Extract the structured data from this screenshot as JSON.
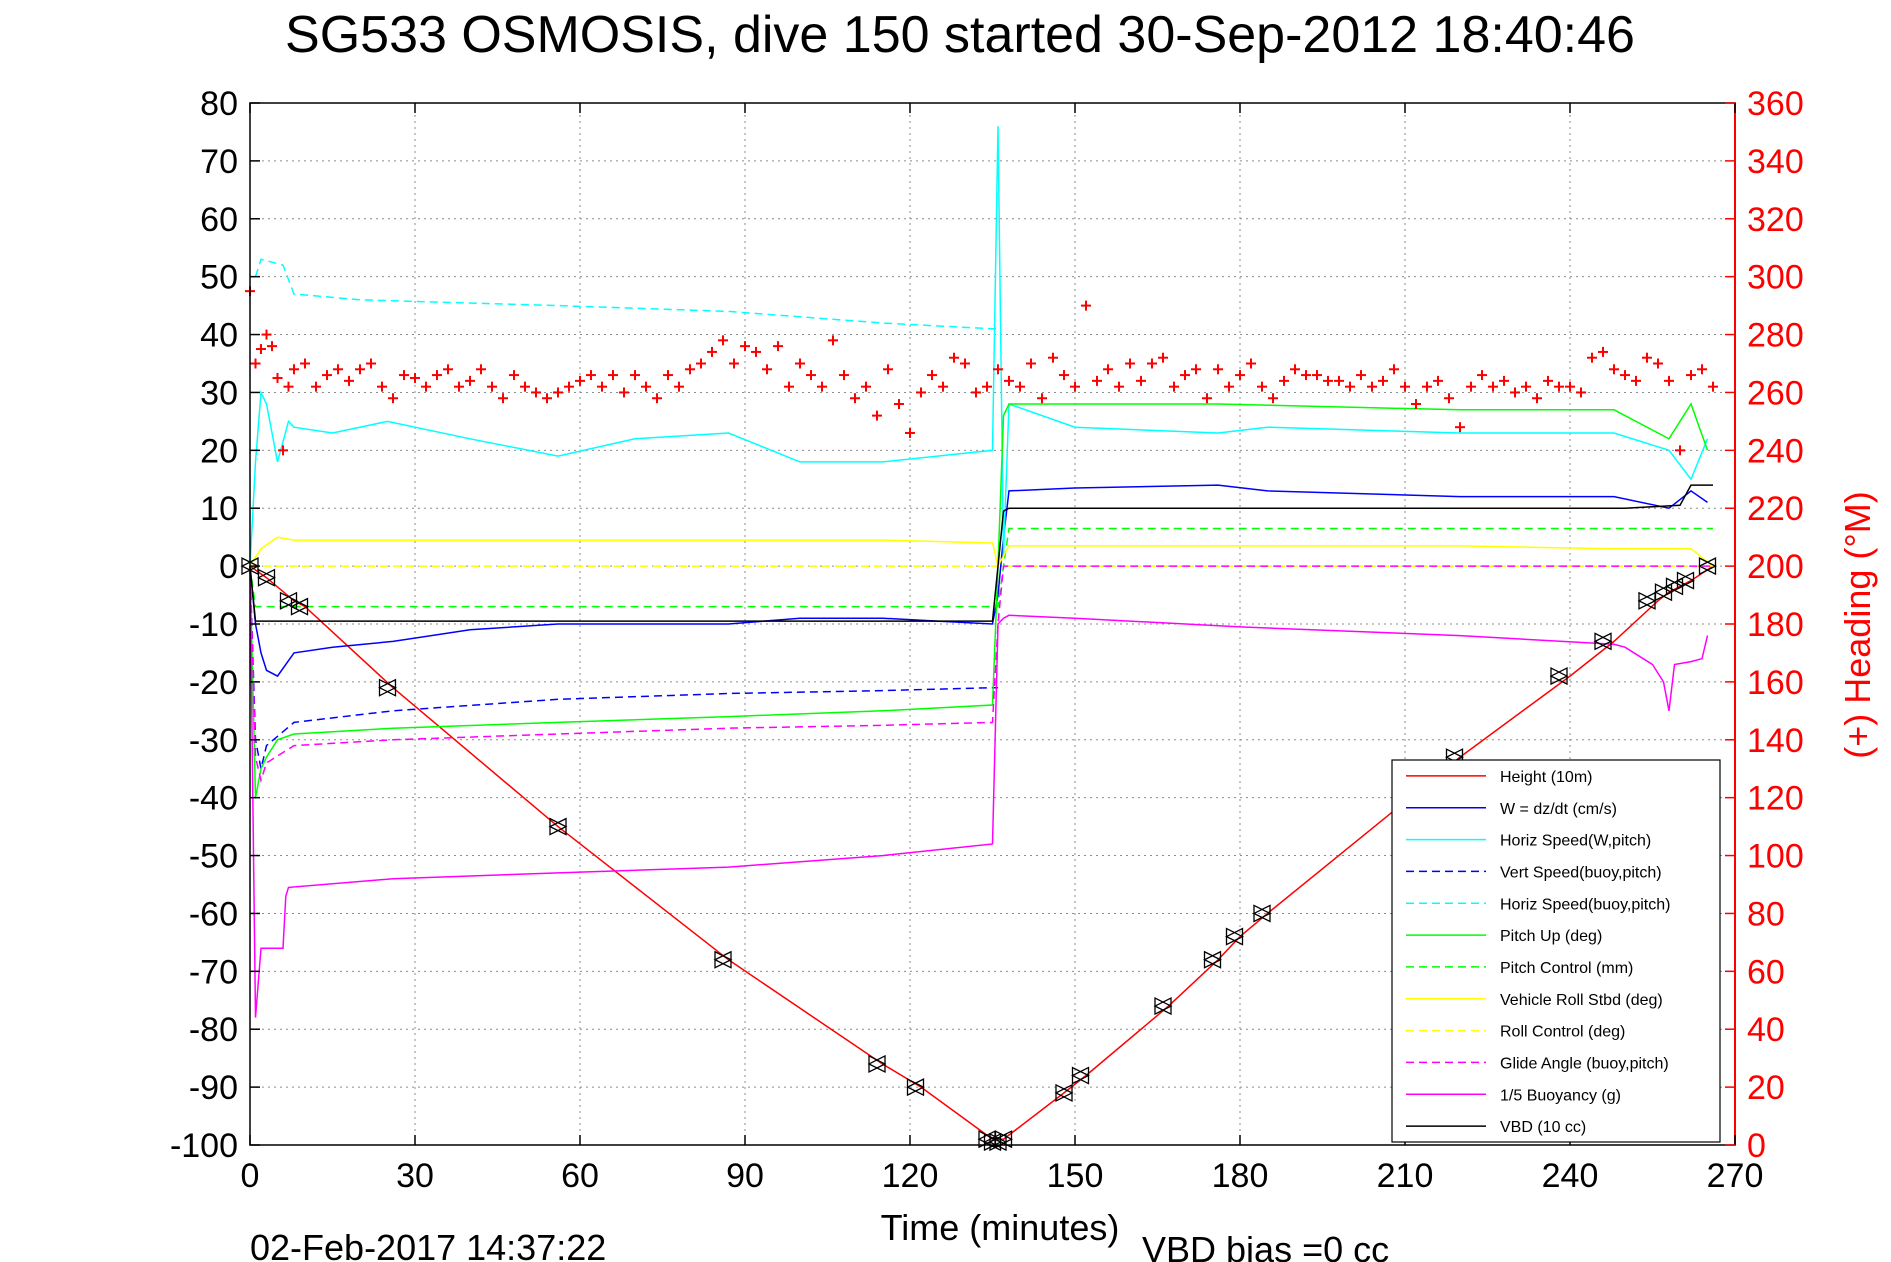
{
  "chart_data": {
    "type": "line",
    "title": "SG533 OSMOSIS, dive 150 started 30-Sep-2012 18:40:46",
    "xlabel": "Time (minutes)",
    "ylabel": "",
    "y2label": "(+) Heading (°M)",
    "footer_left": "02-Feb-2017 14:37:22",
    "footer_right": "VBD bias =0 cc",
    "xlim": [
      0,
      270
    ],
    "ylim": [
      -100,
      80
    ],
    "y2lim": [
      0,
      360
    ],
    "xticks": [
      0,
      30,
      60,
      90,
      120,
      150,
      180,
      210,
      240,
      270
    ],
    "yticks": [
      -100,
      -90,
      -80,
      -70,
      -60,
      -50,
      -40,
      -30,
      -20,
      -10,
      0,
      10,
      20,
      30,
      40,
      50,
      60,
      70,
      80
    ],
    "y2ticks": [
      0,
      20,
      40,
      60,
      80,
      100,
      120,
      140,
      160,
      180,
      200,
      220,
      240,
      260,
      280,
      300,
      320,
      340,
      360
    ],
    "grid": true,
    "legend_position": "bottom-right",
    "colors": {
      "red": "#ff0000",
      "blue": "#0000ff",
      "cyan": "#00ffff",
      "green": "#00ff00",
      "yellow": "#ffff00",
      "magenta": "#ff00ff",
      "black": "#000000"
    },
    "series": [
      {
        "name": "Height (10m)",
        "color": "#ff0000",
        "dash": "solid",
        "x": [
          0,
          3,
          8,
          10,
          26,
          56,
          87,
          115,
          122,
          135,
          137,
          148,
          152,
          167,
          176,
          180,
          185,
          220,
          240,
          248,
          256,
          258,
          260,
          262,
          266
        ],
        "y": [
          0,
          -2,
          -6,
          -7,
          -21,
          -45,
          -68,
          -86,
          -90,
          -99,
          -99,
          -91,
          -88,
          -76,
          -68,
          -64,
          -60,
          -33,
          -19,
          -13,
          -6,
          -4.5,
          -3.5,
          -2.5,
          0
        ]
      },
      {
        "name": "W = dz/dt (cm/s)",
        "color": "#0000ff",
        "dash": "solid",
        "x": [
          0,
          1,
          2,
          3,
          5,
          8,
          15,
          26,
          40,
          56,
          70,
          87,
          100,
          115,
          125,
          135,
          136,
          137,
          138,
          150,
          176,
          185,
          220,
          248,
          258,
          262,
          265
        ],
        "y": [
          0,
          -10,
          -15,
          -18,
          -19,
          -15,
          -14,
          -13,
          -11,
          -10,
          -10,
          -10,
          -9,
          -9,
          -9.5,
          -10,
          -5,
          5,
          13,
          13.5,
          14,
          13,
          12,
          12,
          10,
          13,
          11
        ]
      },
      {
        "name": "Horiz Speed(W,pitch)",
        "color": "#00ffff",
        "dash": "solid",
        "x": [
          0,
          1,
          2,
          3,
          5,
          7,
          8,
          15,
          25,
          40,
          56,
          70,
          87,
          100,
          115,
          125,
          135,
          136,
          137,
          138,
          150,
          176,
          185,
          220,
          248,
          258,
          262,
          265
        ],
        "y": [
          0,
          18,
          30,
          28,
          18,
          25,
          24,
          23,
          25,
          22,
          19,
          22,
          23,
          18,
          18,
          19,
          20,
          76,
          2,
          28,
          24,
          23,
          24,
          23,
          23,
          20,
          15,
          22
        ]
      },
      {
        "name": "Vert Speed(buoy,pitch)",
        "color": "#0000ff",
        "dash": "dashed",
        "x": [
          0,
          1,
          2,
          3,
          8,
          26,
          56,
          87,
          115,
          135,
          136,
          137,
          260,
          263,
          266
        ],
        "y": [
          0,
          -30,
          -35,
          -31,
          -27,
          -25,
          -23,
          -22,
          -21.5,
          -21,
          -21,
          null,
          null,
          null,
          null
        ]
      },
      {
        "name": "Horiz Speed(buoy,pitch)",
        "color": "#00ffff",
        "dash": "dashed",
        "x": [
          1,
          2,
          6,
          8,
          20,
          56,
          87,
          115,
          135,
          136
        ],
        "y": [
          50,
          53,
          52,
          47,
          46,
          45,
          44,
          42,
          41,
          41
        ]
      },
      {
        "name": "Pitch Up (deg)",
        "color": "#00ff00",
        "dash": "solid",
        "x": [
          0,
          1,
          2,
          3,
          5,
          8,
          26,
          56,
          87,
          115,
          135,
          136,
          137,
          138,
          150,
          176,
          220,
          248,
          258,
          262,
          265
        ],
        "y": [
          0,
          -40,
          -35,
          -33,
          -30,
          -29,
          -28,
          -27,
          -26,
          -25,
          -24,
          0,
          26,
          28,
          28,
          28,
          27,
          27,
          22,
          28,
          20
        ]
      },
      {
        "name": "Pitch Control (mm)",
        "color": "#00ff00",
        "dash": "dashed",
        "x": [
          0,
          1,
          3,
          136,
          137,
          138,
          266
        ],
        "y": [
          0,
          -7,
          -7,
          -7,
          0,
          6.5,
          6.5
        ]
      },
      {
        "name": "Vehicle Roll Stbd (deg)",
        "color": "#ffff00",
        "dash": "solid",
        "x": [
          0,
          2,
          5,
          8,
          56,
          87,
          115,
          135,
          136,
          138,
          150,
          176,
          220,
          248,
          258,
          262,
          266
        ],
        "y": [
          0,
          3,
          5,
          4.5,
          4.5,
          4.5,
          4.5,
          4,
          0,
          3.5,
          3.5,
          3.5,
          3.5,
          3,
          3,
          3,
          0
        ]
      },
      {
        "name": "Roll Control (deg)",
        "color": "#ffff00",
        "dash": "dashed",
        "x": [
          0,
          266
        ],
        "y": [
          0,
          0
        ]
      },
      {
        "name": "Glide Angle (buoy,pitch)",
        "color": "#ff00ff",
        "dash": "dashed",
        "x": [
          0,
          1,
          2,
          3,
          8,
          26,
          56,
          87,
          115,
          135,
          136,
          137,
          138,
          266
        ],
        "y": [
          0,
          -33,
          -37,
          -34,
          -31,
          -30,
          -29,
          -28,
          -27.5,
          -27,
          -10,
          0,
          0,
          0
        ]
      },
      {
        "name": "1/5 Buoyancy (g)",
        "color": "#ff00ff",
        "dash": "solid",
        "x": [
          0,
          1,
          2,
          6,
          6.5,
          7,
          26,
          56,
          87,
          115,
          135,
          136,
          137,
          138,
          150,
          180,
          220,
          248,
          250,
          255,
          257,
          258,
          259,
          262,
          264,
          265
        ],
        "y": [
          0,
          -78,
          -66,
          -66,
          -57,
          -55.5,
          -54,
          -53,
          -52,
          -50,
          -48,
          -10,
          -9,
          -8.5,
          -9,
          -10.5,
          -12,
          -13.5,
          -14,
          -17,
          -20,
          -25,
          -17,
          -16.5,
          -16,
          -12
        ]
      },
      {
        "name": "VBD (10 cc)",
        "color": "#000000",
        "dash": "solid",
        "x": [
          0,
          1,
          2,
          135,
          136,
          137,
          138,
          250,
          260,
          262,
          266
        ],
        "y": [
          0,
          -9.5,
          -9.5,
          -9.5,
          0,
          9.5,
          10,
          10,
          10.5,
          14,
          14
        ]
      }
    ],
    "heading": {
      "name": "(+) Heading",
      "color": "#ff0000",
      "marker": "+",
      "x": [
        0,
        1,
        2,
        3,
        4,
        5,
        6,
        7,
        8,
        10,
        12,
        14,
        16,
        18,
        20,
        22,
        24,
        26,
        28,
        30,
        32,
        34,
        36,
        38,
        40,
        42,
        44,
        46,
        48,
        50,
        52,
        54,
        56,
        58,
        60,
        62,
        64,
        66,
        68,
        70,
        72,
        74,
        76,
        78,
        80,
        82,
        84,
        86,
        88,
        90,
        92,
        94,
        96,
        98,
        100,
        102,
        104,
        106,
        108,
        110,
        112,
        114,
        116,
        118,
        120,
        122,
        124,
        126,
        128,
        130,
        132,
        134,
        136,
        138,
        140,
        142,
        144,
        146,
        148,
        150,
        152,
        154,
        156,
        158,
        160,
        162,
        164,
        166,
        168,
        170,
        172,
        174,
        176,
        178,
        180,
        182,
        184,
        186,
        188,
        190,
        192,
        194,
        196,
        198,
        200,
        202,
        204,
        206,
        208,
        210,
        212,
        214,
        216,
        218,
        220,
        222,
        224,
        226,
        228,
        230,
        232,
        234,
        236,
        238,
        240,
        242,
        244,
        246,
        248,
        250,
        252,
        254,
        256,
        258,
        260,
        262,
        264,
        266
      ],
      "y": [
        295,
        270,
        275,
        280,
        276,
        265,
        240,
        262,
        268,
        270,
        262,
        266,
        268,
        264,
        268,
        270,
        262,
        258,
        266,
        265,
        262,
        266,
        268,
        262,
        264,
        268,
        262,
        258,
        266,
        262,
        260,
        258,
        260,
        262,
        264,
        266,
        262,
        266,
        260,
        266,
        262,
        258,
        266,
        262,
        268,
        270,
        274,
        278,
        270,
        276,
        274,
        268,
        276,
        262,
        270,
        266,
        262,
        278,
        266,
        258,
        262,
        252,
        268,
        256,
        246,
        260,
        266,
        262,
        272,
        270,
        260,
        262,
        268,
        264,
        262,
        270,
        258,
        272,
        266,
        262,
        290,
        264,
        268,
        262,
        270,
        264,
        270,
        272,
        262,
        266,
        268,
        258,
        268,
        262,
        266,
        270,
        262,
        258,
        264,
        268,
        266,
        266,
        264,
        264,
        262,
        266,
        262,
        264,
        268,
        262,
        256,
        262,
        264,
        258,
        248,
        262,
        266,
        262,
        264,
        260,
        262,
        258,
        264,
        262,
        262,
        260,
        272,
        274,
        268,
        266,
        264,
        272,
        270,
        264,
        240,
        266,
        268,
        262
      ]
    },
    "triangle_markers": {
      "x": [
        0,
        3,
        7,
        9,
        25,
        56,
        86,
        114,
        121,
        134,
        135,
        136,
        137,
        148,
        151,
        166,
        175,
        179,
        184,
        219,
        238,
        246,
        254,
        257,
        259,
        261,
        265
      ],
      "y": [
        0,
        -2,
        -6,
        -7,
        -21,
        -45,
        -68,
        -86,
        -90,
        -99,
        -99.5,
        -99.5,
        -99,
        -91,
        -88,
        -76,
        -68,
        -64,
        -60,
        -33,
        -19,
        -13,
        -6,
        -4.5,
        -3.5,
        -2.5,
        0
      ]
    }
  }
}
